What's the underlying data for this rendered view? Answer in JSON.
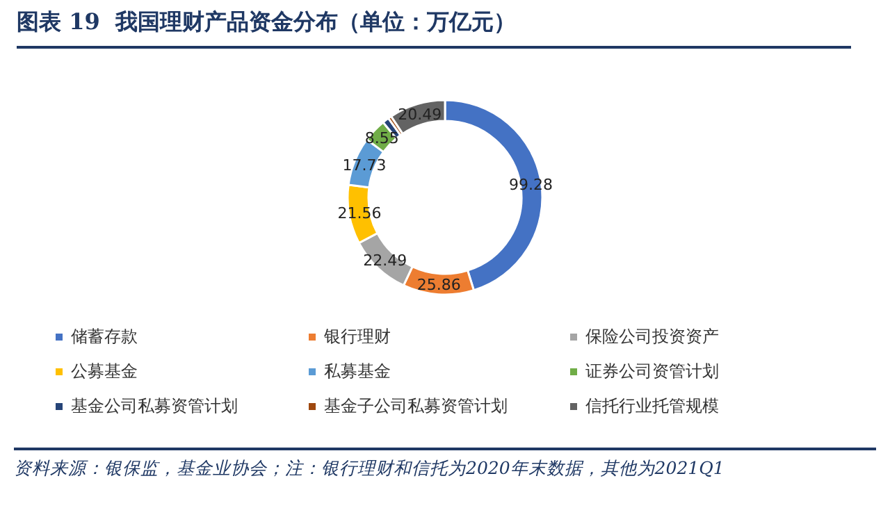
{
  "chart_data": {
    "type": "donut",
    "title": "图表 19  我国理财产品资金分布（单位：万亿元）",
    "categories": [
      "储蓄存款",
      "银行理财",
      "保险公司投资资产",
      "公募基金",
      "私募基金",
      "证券公司资管计划",
      "基金公司私募资管计划",
      "基金子公司私募资管计划",
      "信托行业托管规模"
    ],
    "values": [
      99.28,
      25.86,
      22.49,
      21.56,
      17.73,
      8.55,
      2.4,
      1.2,
      20.49
    ],
    "colors": [
      "#4472c4",
      "#ed7d31",
      "#a5a5a5",
      "#ffc000",
      "#5b9bd5",
      "#70ad47",
      "#264478",
      "#9e480e",
      "#636363"
    ],
    "value_labels": [
      "99.28",
      "25.86",
      "22.49",
      "21.56",
      "17.73",
      "8.55",
      null,
      null,
      "20.49"
    ],
    "legend": "bottom",
    "annotations": [
      "资料来源：银保监，基金业协会；注：银行理财和信托为2020年末数据，其他为2021Q1"
    ]
  }
}
